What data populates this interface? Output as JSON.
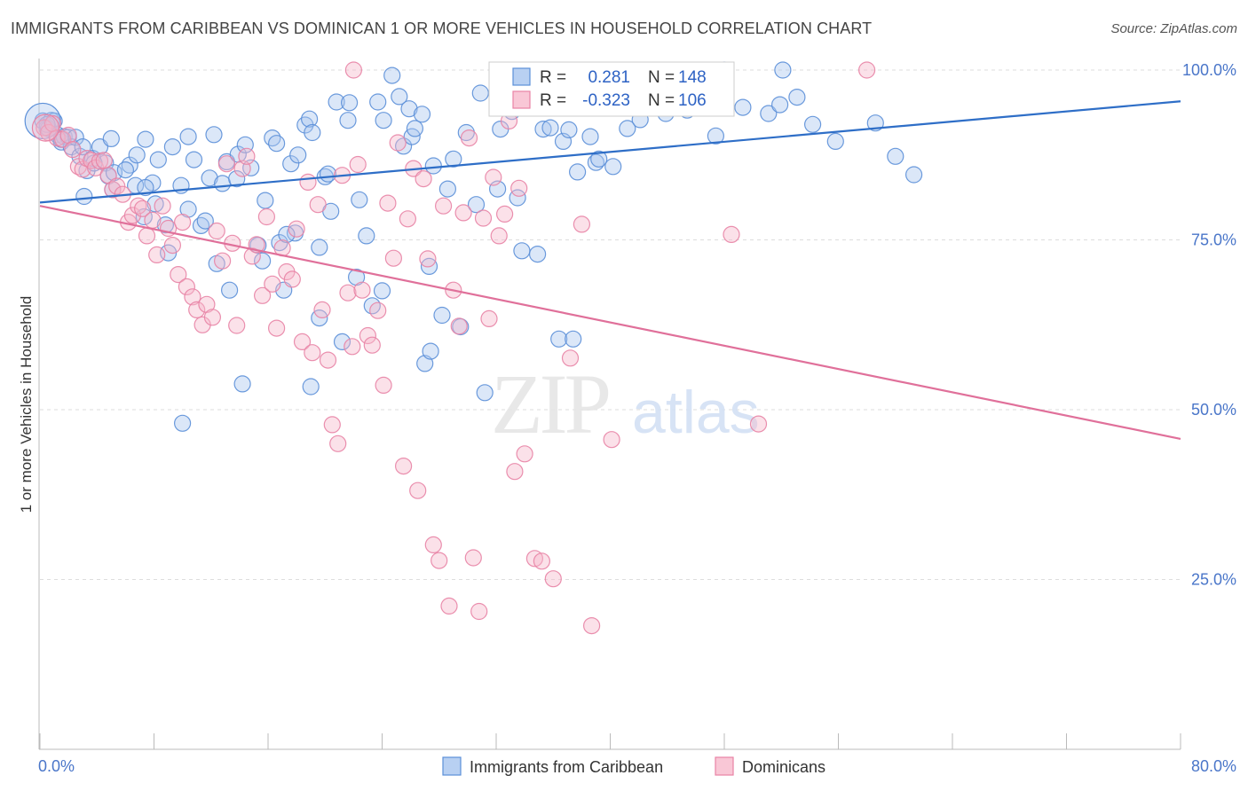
{
  "title": "IMMIGRANTS FROM CARIBBEAN VS DOMINICAN 1 OR MORE VEHICLES IN HOUSEHOLD CORRELATION CHART",
  "source": "Source: ZipAtlas.com",
  "watermark": {
    "zip": "ZIP",
    "atlas": "atlas"
  },
  "colors": {
    "blue_fill": "#a9c6ee",
    "blue_stroke": "#5b8fd8",
    "blue_line": "#2e6ec7",
    "pink_fill": "#f5b7ca",
    "pink_stroke": "#e883a5",
    "pink_line": "#e0709a",
    "grid": "#dddddd",
    "tick_text": "#4a76c9"
  },
  "stats_box": {
    "rows": [
      {
        "r_label": "R =",
        "r_value": "0.281",
        "n_label": "N =",
        "n_value": "148"
      },
      {
        "r_label": "R =",
        "r_value": "-0.323",
        "n_label": "N =",
        "n_value": "106"
      }
    ]
  },
  "legend": {
    "placement": "bottom-center",
    "items": [
      "Immigrants from Caribbean",
      "Dominicans"
    ]
  },
  "chart_data": {
    "type": "scatter",
    "title": "IMMIGRANTS FROM CARIBBEAN VS DOMINICAN 1 OR MORE VEHICLES IN HOUSEHOLD CORRELATION CHART",
    "xlabel": "",
    "ylabel": "1 or more Vehicles in Household",
    "xlim": [
      0,
      80
    ],
    "ylim": [
      0,
      103
    ],
    "x_tick_labels": [
      "0.0%",
      "80.0%"
    ],
    "y_ticks": [
      25,
      50,
      75,
      100
    ],
    "y_tick_labels": [
      "25.0%",
      "50.0%",
      "75.0%",
      "100.0%"
    ],
    "grid": true,
    "series": [
      {
        "name": "Immigrants from Caribbean",
        "color": "#5b8fd8",
        "trend": {
          "x": [
            0,
            80
          ],
          "y": [
            80.5,
            95.4
          ]
        },
        "points": [
          [
            0.2,
            92.5
          ],
          [
            0.5,
            91.5
          ],
          [
            0.6,
            91.4
          ],
          [
            0.8,
            92.6
          ],
          [
            1.0,
            92.5
          ],
          [
            1.2,
            90.5
          ],
          [
            1.5,
            89.4
          ],
          [
            1.7,
            90.2
          ],
          [
            2.0,
            90.1
          ],
          [
            2.2,
            88.7
          ],
          [
            2.5,
            90.1
          ],
          [
            2.8,
            87.3
          ],
          [
            3.0,
            88.7
          ],
          [
            3.3,
            85.2
          ],
          [
            3.7,
            87.0
          ],
          [
            4.2,
            88.7
          ],
          [
            4.6,
            86.3
          ],
          [
            4.8,
            84.4
          ],
          [
            5.0,
            89.9
          ],
          [
            5.2,
            84.9
          ],
          [
            6.3,
            86.0
          ],
          [
            6.8,
            87.5
          ],
          [
            7.4,
            89.8
          ],
          [
            7.9,
            83.4
          ],
          [
            8.3,
            86.8
          ],
          [
            9.3,
            88.7
          ],
          [
            3.1,
            81.4
          ],
          [
            5.1,
            82.4
          ],
          [
            6.0,
            85.3
          ],
          [
            6.7,
            83.0
          ],
          [
            7.3,
            78.4
          ],
          [
            8.1,
            80.3
          ],
          [
            8.8,
            77.2
          ],
          [
            9.0,
            73.1
          ],
          [
            9.9,
            83.0
          ],
          [
            10.4,
            90.2
          ],
          [
            10.4,
            79.5
          ],
          [
            10.8,
            86.8
          ],
          [
            11.3,
            77.1
          ],
          [
            11.6,
            77.8
          ],
          [
            11.9,
            84.1
          ],
          [
            12.2,
            90.5
          ],
          [
            12.4,
            71.5
          ],
          [
            12.8,
            83.3
          ],
          [
            13.1,
            86.5
          ],
          [
            13.3,
            67.6
          ],
          [
            13.8,
            84.0
          ],
          [
            13.9,
            87.6
          ],
          [
            14.4,
            89.0
          ],
          [
            14.8,
            85.6
          ],
          [
            15.3,
            74.2
          ],
          [
            15.6,
            71.9
          ],
          [
            15.8,
            80.8
          ],
          [
            16.3,
            90.0
          ],
          [
            16.6,
            89.2
          ],
          [
            16.8,
            74.6
          ],
          [
            17.1,
            67.6
          ],
          [
            17.6,
            86.2
          ],
          [
            17.9,
            76.0
          ],
          [
            18.1,
            87.5
          ],
          [
            18.6,
            91.9
          ],
          [
            18.9,
            92.8
          ],
          [
            19.1,
            90.8
          ],
          [
            19.6,
            73.9
          ],
          [
            19.6,
            63.5
          ],
          [
            20.0,
            84.3
          ],
          [
            20.2,
            84.7
          ],
          [
            20.4,
            79.2
          ],
          [
            20.8,
            95.3
          ],
          [
            21.2,
            60.0
          ],
          [
            21.6,
            92.6
          ],
          [
            21.7,
            95.2
          ],
          [
            22.2,
            69.5
          ],
          [
            22.4,
            80.9
          ],
          [
            22.9,
            75.6
          ],
          [
            23.3,
            65.3
          ],
          [
            23.7,
            95.3
          ],
          [
            24.0,
            67.5
          ],
          [
            24.1,
            92.6
          ],
          [
            24.7,
            99.2
          ],
          [
            25.2,
            96.1
          ],
          [
            25.5,
            88.8
          ],
          [
            25.9,
            94.3
          ],
          [
            26.1,
            90.2
          ],
          [
            26.3,
            91.4
          ],
          [
            26.8,
            93.5
          ],
          [
            27.3,
            71.1
          ],
          [
            27.6,
            85.9
          ],
          [
            28.2,
            63.9
          ],
          [
            28.6,
            82.5
          ],
          [
            29.0,
            86.9
          ],
          [
            29.5,
            62.2
          ],
          [
            29.9,
            90.8
          ],
          [
            30.6,
            80.2
          ],
          [
            30.9,
            96.6
          ],
          [
            31.2,
            52.5
          ],
          [
            32.1,
            82.5
          ],
          [
            32.3,
            91.3
          ],
          [
            33.1,
            93.9
          ],
          [
            33.5,
            81.2
          ],
          [
            33.8,
            73.4
          ],
          [
            34.2,
            96.3
          ],
          [
            34.9,
            72.9
          ],
          [
            35.3,
            91.3
          ],
          [
            35.8,
            91.5
          ],
          [
            36.4,
            60.4
          ],
          [
            36.7,
            89.5
          ],
          [
            37.1,
            91.2
          ],
          [
            37.7,
            85.0
          ],
          [
            38.6,
            90.2
          ],
          [
            39.0,
            86.4
          ],
          [
            39.2,
            86.9
          ],
          [
            40.2,
            85.8
          ],
          [
            41.2,
            99.5
          ],
          [
            41.2,
            91.4
          ],
          [
            42.1,
            92.7
          ],
          [
            42.9,
            99.9
          ],
          [
            43.9,
            93.6
          ],
          [
            44.6,
            96.7
          ],
          [
            45.4,
            94.1
          ],
          [
            45.9,
            97.0
          ],
          [
            46.3,
            96.8
          ],
          [
            47.4,
            90.3
          ],
          [
            48.0,
            100.0
          ],
          [
            49.3,
            94.5
          ],
          [
            51.1,
            93.6
          ],
          [
            52.1,
            100.0
          ],
          [
            51.9,
            94.9
          ],
          [
            53.1,
            96.0
          ],
          [
            54.2,
            92.0
          ],
          [
            55.8,
            89.5
          ],
          [
            58.6,
            92.2
          ],
          [
            60.0,
            87.3
          ],
          [
            61.3,
            84.6
          ],
          [
            0.5,
            92.0
          ],
          [
            1.5,
            89.8
          ],
          [
            3.8,
            86.3
          ],
          [
            7.4,
            82.7
          ],
          [
            10.0,
            48.0
          ],
          [
            14.2,
            53.8
          ],
          [
            17.3,
            75.8
          ],
          [
            19.0,
            53.4
          ],
          [
            27.0,
            56.8
          ],
          [
            27.4,
            58.6
          ],
          [
            37.4,
            60.4
          ]
        ]
      },
      {
        "name": "Dominicans",
        "color": "#e883a5",
        "trend": {
          "x": [
            0,
            80
          ],
          "y": [
            80.0,
            45.7
          ]
        },
        "points": [
          [
            0.3,
            91.5
          ],
          [
            0.6,
            90.8
          ],
          [
            0.9,
            92.1
          ],
          [
            1.2,
            90.0
          ],
          [
            1.6,
            89.8
          ],
          [
            2.0,
            90.4
          ],
          [
            2.3,
            88.3
          ],
          [
            2.7,
            85.8
          ],
          [
            3.0,
            85.4
          ],
          [
            3.3,
            87.0
          ],
          [
            3.6,
            86.7
          ],
          [
            3.9,
            85.6
          ],
          [
            4.2,
            86.6
          ],
          [
            4.5,
            86.7
          ],
          [
            4.8,
            84.5
          ],
          [
            5.1,
            82.4
          ],
          [
            5.4,
            82.9
          ],
          [
            5.8,
            81.7
          ],
          [
            6.2,
            77.6
          ],
          [
            6.5,
            78.6
          ],
          [
            6.9,
            80.0
          ],
          [
            7.2,
            79.6
          ],
          [
            7.5,
            75.6
          ],
          [
            7.9,
            77.9
          ],
          [
            8.2,
            72.8
          ],
          [
            8.6,
            80.0
          ],
          [
            9.0,
            76.7
          ],
          [
            9.3,
            74.2
          ],
          [
            9.7,
            69.9
          ],
          [
            10.0,
            77.6
          ],
          [
            10.3,
            68.1
          ],
          [
            10.7,
            66.6
          ],
          [
            11.0,
            64.7
          ],
          [
            11.4,
            62.5
          ],
          [
            11.7,
            65.5
          ],
          [
            12.1,
            63.6
          ],
          [
            12.4,
            76.3
          ],
          [
            12.8,
            71.9
          ],
          [
            13.1,
            86.2
          ],
          [
            13.5,
            74.5
          ],
          [
            13.8,
            62.4
          ],
          [
            14.2,
            85.5
          ],
          [
            14.5,
            87.3
          ],
          [
            14.9,
            72.6
          ],
          [
            15.2,
            74.3
          ],
          [
            15.6,
            66.8
          ],
          [
            15.9,
            78.4
          ],
          [
            16.3,
            68.5
          ],
          [
            16.6,
            62.0
          ],
          [
            17.0,
            73.8
          ],
          [
            17.3,
            70.3
          ],
          [
            17.7,
            69.2
          ],
          [
            18.0,
            76.6
          ],
          [
            18.4,
            60.0
          ],
          [
            18.8,
            83.5
          ],
          [
            19.1,
            58.4
          ],
          [
            19.5,
            80.2
          ],
          [
            19.8,
            64.7
          ],
          [
            20.2,
            57.3
          ],
          [
            20.5,
            47.8
          ],
          [
            20.9,
            45.0
          ],
          [
            21.2,
            84.5
          ],
          [
            21.6,
            67.2
          ],
          [
            21.9,
            59.3
          ],
          [
            22.3,
            86.1
          ],
          [
            22.6,
            67.6
          ],
          [
            23.0,
            60.9
          ],
          [
            23.3,
            59.5
          ],
          [
            23.7,
            64.6
          ],
          [
            24.1,
            53.6
          ],
          [
            24.4,
            80.4
          ],
          [
            24.8,
            72.3
          ],
          [
            25.1,
            89.3
          ],
          [
            25.5,
            41.7
          ],
          [
            25.8,
            78.1
          ],
          [
            26.2,
            85.5
          ],
          [
            26.5,
            38.1
          ],
          [
            26.9,
            84.0
          ],
          [
            27.2,
            72.2
          ],
          [
            27.6,
            30.1
          ],
          [
            28.0,
            27.8
          ],
          [
            28.3,
            80.0
          ],
          [
            28.7,
            21.1
          ],
          [
            29.0,
            67.6
          ],
          [
            29.4,
            62.3
          ],
          [
            29.7,
            79.0
          ],
          [
            30.1,
            90.0
          ],
          [
            30.4,
            28.2
          ],
          [
            30.8,
            20.3
          ],
          [
            31.1,
            78.2
          ],
          [
            31.5,
            63.4
          ],
          [
            31.8,
            84.2
          ],
          [
            32.2,
            75.6
          ],
          [
            32.6,
            78.8
          ],
          [
            32.9,
            92.5
          ],
          [
            33.3,
            40.9
          ],
          [
            33.6,
            82.6
          ],
          [
            34.0,
            43.5
          ],
          [
            34.7,
            28.1
          ],
          [
            35.2,
            27.7
          ],
          [
            36.0,
            25.1
          ],
          [
            37.2,
            57.6
          ],
          [
            38.0,
            77.3
          ],
          [
            38.7,
            18.2
          ],
          [
            40.1,
            45.6
          ],
          [
            48.5,
            75.8
          ],
          [
            50.4,
            47.9
          ],
          [
            58.0,
            100.0
          ],
          [
            22.0,
            100.0
          ]
        ]
      }
    ]
  }
}
